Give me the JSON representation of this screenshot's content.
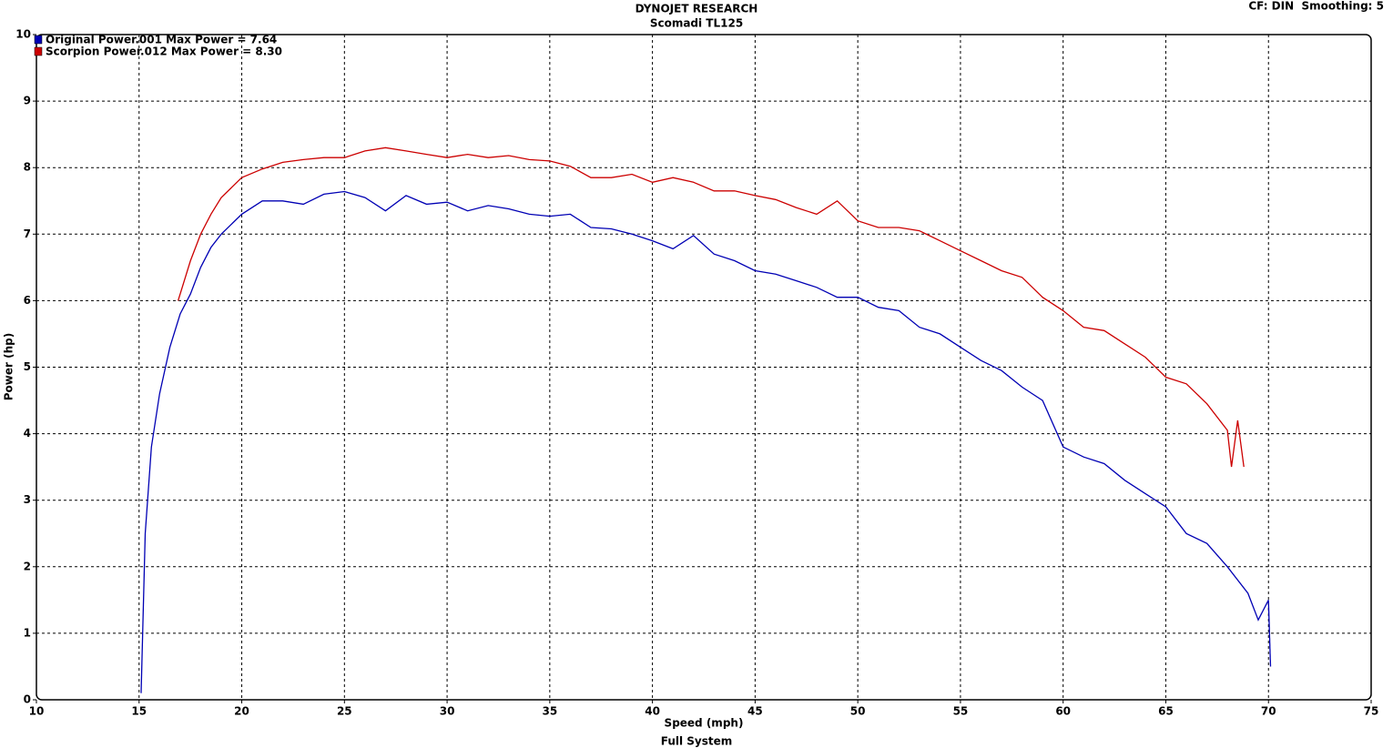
{
  "chart_data": {
    "type": "line",
    "title": "DYNOJET RESEARCH",
    "subtitle": "Scomadi TL125",
    "annotation": "CF: DIN  Smoothing: 5",
    "x_label": "Speed (mph)",
    "y_label": "Power (hp)",
    "caption": "Full System",
    "xlim": [
      10,
      75
    ],
    "ylim": [
      0,
      10
    ],
    "xticks": [
      10,
      15,
      20,
      25,
      30,
      35,
      40,
      45,
      50,
      55,
      60,
      65,
      70,
      75
    ],
    "yticks": [
      0,
      1,
      2,
      3,
      4,
      5,
      6,
      7,
      8,
      9,
      10
    ],
    "grid": true,
    "legend": "top-left",
    "series": [
      {
        "name": "Original Power.001 Max Power = 7.64",
        "color": "#0000b4",
        "x": [
          15.1,
          15.3,
          15.6,
          16,
          16.5,
          17,
          17.5,
          18,
          18.5,
          19,
          20,
          21,
          22,
          23,
          24,
          25,
          26,
          27,
          28,
          29,
          30,
          31,
          32,
          33,
          34,
          35,
          36,
          37,
          38,
          39,
          40,
          41,
          42,
          43,
          44,
          45,
          46,
          47,
          48,
          49,
          50,
          51,
          52,
          53,
          54,
          55,
          56,
          57,
          58,
          59,
          60,
          61,
          62,
          63,
          64,
          65,
          66,
          67,
          68,
          69,
          69.5,
          70,
          70.1
        ],
        "values": [
          0.1,
          2.5,
          3.8,
          4.6,
          5.3,
          5.8,
          6.1,
          6.5,
          6.8,
          7.0,
          7.3,
          7.5,
          7.5,
          7.45,
          7.6,
          7.64,
          7.55,
          7.35,
          7.58,
          7.45,
          7.48,
          7.35,
          7.43,
          7.38,
          7.3,
          7.27,
          7.3,
          7.1,
          7.08,
          7.0,
          6.9,
          6.78,
          6.98,
          6.7,
          6.6,
          6.45,
          6.4,
          6.3,
          6.2,
          6.05,
          6.05,
          5.9,
          5.85,
          5.6,
          5.5,
          5.3,
          5.1,
          4.95,
          4.7,
          4.5,
          3.8,
          3.65,
          3.55,
          3.3,
          3.1,
          2.9,
          2.5,
          2.35,
          2.0,
          1.6,
          1.2,
          1.5,
          0.5
        ]
      },
      {
        "name": "Scorpion Power.012 Max Power = 8.30",
        "color": "#cc0000",
        "x": [
          16.9,
          17,
          17.5,
          18,
          18.5,
          19,
          20,
          21,
          22,
          23,
          24,
          25,
          26,
          27,
          28,
          29,
          30,
          31,
          32,
          33,
          34,
          35,
          36,
          37,
          38,
          39,
          40,
          41,
          42,
          43,
          44,
          45,
          46,
          47,
          48,
          49,
          50,
          51,
          52,
          53,
          54,
          55,
          56,
          57,
          58,
          59,
          60,
          61,
          62,
          63,
          64,
          65,
          66,
          67,
          68,
          68.2,
          68.5,
          68.8
        ],
        "values": [
          6.0,
          6.1,
          6.6,
          7.0,
          7.3,
          7.55,
          7.85,
          7.98,
          8.08,
          8.12,
          8.15,
          8.15,
          8.25,
          8.3,
          8.25,
          8.2,
          8.15,
          8.2,
          8.15,
          8.18,
          8.12,
          8.1,
          8.02,
          7.85,
          7.85,
          7.9,
          7.78,
          7.85,
          7.78,
          7.65,
          7.65,
          7.58,
          7.52,
          7.4,
          7.3,
          7.5,
          7.2,
          7.1,
          7.1,
          7.05,
          6.9,
          6.75,
          6.6,
          6.45,
          6.35,
          6.05,
          5.85,
          5.6,
          5.55,
          5.35,
          5.15,
          4.85,
          4.75,
          4.45,
          4.05,
          3.5,
          4.2,
          3.5
        ]
      }
    ]
  }
}
